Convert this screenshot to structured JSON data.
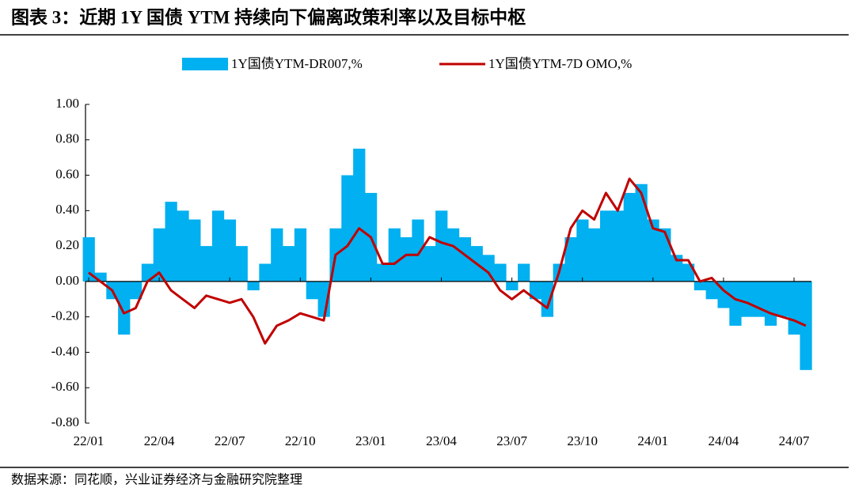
{
  "chart_data": {
    "type": "combo",
    "title": "图表 3：近期 1Y 国债 YTM 持续向下偏离政策利率以及目标中枢",
    "source": "数据来源：同花顺，兴业证券经济与金融研究院整理",
    "categories": [
      "22/01",
      null,
      null,
      null,
      null,
      null,
      "22/04",
      null,
      null,
      null,
      null,
      null,
      "22/07",
      null,
      null,
      null,
      null,
      null,
      "22/10",
      null,
      null,
      null,
      null,
      null,
      "23/01",
      null,
      null,
      null,
      null,
      null,
      "23/04",
      null,
      null,
      null,
      null,
      null,
      "23/07",
      null,
      null,
      null,
      null,
      null,
      "23/10",
      null,
      null,
      null,
      null,
      null,
      "24/01",
      null,
      null,
      null,
      null,
      null,
      "24/04",
      null,
      null,
      null,
      null,
      null,
      "24/07",
      null
    ],
    "series": [
      {
        "name": "1Y国债YTM-DR007,%",
        "type": "bar",
        "color": "#00b0f0",
        "values": [
          0.25,
          0.05,
          -0.1,
          -0.3,
          -0.1,
          0.1,
          0.3,
          0.45,
          0.4,
          0.35,
          0.2,
          0.4,
          0.35,
          0.2,
          -0.05,
          0.1,
          0.3,
          0.2,
          0.3,
          -0.1,
          -0.2,
          0.3,
          0.6,
          0.75,
          0.5,
          0.1,
          0.3,
          0.25,
          0.35,
          0.2,
          0.4,
          0.3,
          0.25,
          0.2,
          0.15,
          0.1,
          -0.05,
          0.1,
          -0.1,
          -0.2,
          0.1,
          0.25,
          0.35,
          0.3,
          0.4,
          0.4,
          0.5,
          0.55,
          0.35,
          0.3,
          0.15,
          0.1,
          -0.05,
          -0.1,
          -0.15,
          -0.25,
          -0.2,
          -0.2,
          -0.25,
          -0.2,
          -0.3,
          -0.5
        ]
      },
      {
        "name": "1Y国债YTM-7D OMO,%",
        "type": "line",
        "color": "#c00000",
        "values": [
          0.05,
          0.0,
          -0.05,
          -0.18,
          -0.15,
          0.0,
          0.05,
          -0.05,
          -0.1,
          -0.15,
          -0.08,
          -0.1,
          -0.12,
          -0.1,
          -0.2,
          -0.35,
          -0.25,
          -0.22,
          -0.18,
          -0.2,
          -0.22,
          0.15,
          0.2,
          0.3,
          0.25,
          0.1,
          0.1,
          0.15,
          0.15,
          0.25,
          0.22,
          0.2,
          0.15,
          0.1,
          0.05,
          -0.05,
          -0.1,
          -0.05,
          -0.1,
          -0.15,
          0.05,
          0.3,
          0.4,
          0.35,
          0.5,
          0.4,
          0.58,
          0.5,
          0.3,
          0.28,
          0.12,
          0.12,
          0.0,
          0.02,
          -0.05,
          -0.1,
          -0.12,
          -0.15,
          -0.18,
          -0.2,
          -0.22,
          -0.25
        ]
      }
    ],
    "ylim": [
      -0.8,
      1.0
    ],
    "yticks": [
      {
        "value": -0.8,
        "label": "-0.80"
      },
      {
        "value": -0.6,
        "label": "-0.60"
      },
      {
        "value": -0.4,
        "label": "-0.40"
      },
      {
        "value": -0.2,
        "label": "-0.20"
      },
      {
        "value": 0,
        "label": "0.00"
      },
      {
        "value": 0.2,
        "label": "0.20"
      },
      {
        "value": 0.4,
        "label": "0.40"
      },
      {
        "value": 0.6,
        "label": "0.60"
      },
      {
        "value": 0.8,
        "label": "0.80"
      },
      {
        "value": 1.0,
        "label": "1.00"
      }
    ]
  }
}
